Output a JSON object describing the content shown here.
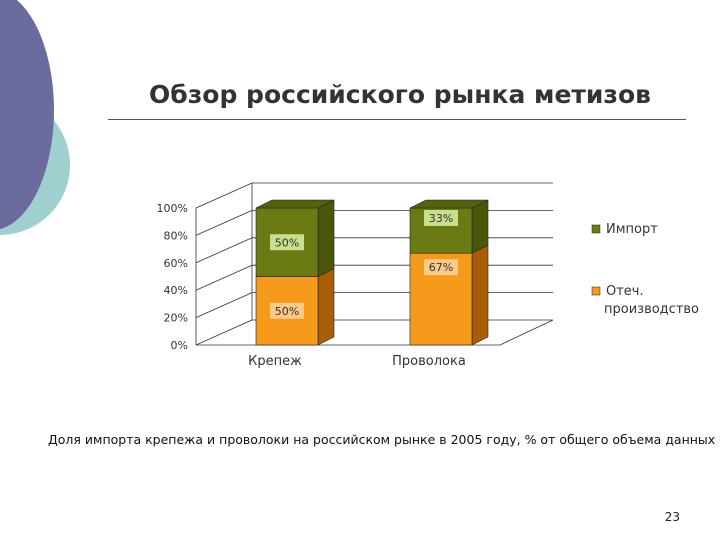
{
  "slide": {
    "title": "Обзор российского рынка метизов",
    "caption": "Доля импорта крепежа и проволоки на российском рынке в 2005 году, % от общего объема данных сегме",
    "page_number": "23"
  },
  "colors": {
    "deco_purple": "#6b6b9e",
    "deco_teal": "#9fd0d0",
    "import_front": "#6b7a12",
    "import_side": "#4b560b",
    "import_top": "#55610e",
    "domestic_front": "#f59a1b",
    "domestic_side": "#a85e07",
    "label_import_bg": "#c8df8e",
    "label_domestic_bg": "#fbc98a"
  },
  "chart_data": {
    "type": "bar",
    "stacked": true,
    "percent": true,
    "categories": [
      "Крепеж",
      "Проволока"
    ],
    "series": [
      {
        "name": "Отеч. производство",
        "values": [
          50,
          67
        ],
        "labels": [
          "50%",
          "67%"
        ]
      },
      {
        "name": "Импорт",
        "values": [
          50,
          33
        ],
        "labels": [
          "50%",
          "33%"
        ]
      }
    ],
    "ylim": [
      0,
      100
    ],
    "yticks": [
      "0%",
      "20%",
      "40%",
      "60%",
      "80%",
      "100%"
    ],
    "ytick_values": [
      0,
      20,
      40,
      60,
      80,
      100
    ],
    "grid": true,
    "legend": {
      "position": "right",
      "entries": [
        "Импорт",
        "Отеч. производство"
      ]
    }
  }
}
